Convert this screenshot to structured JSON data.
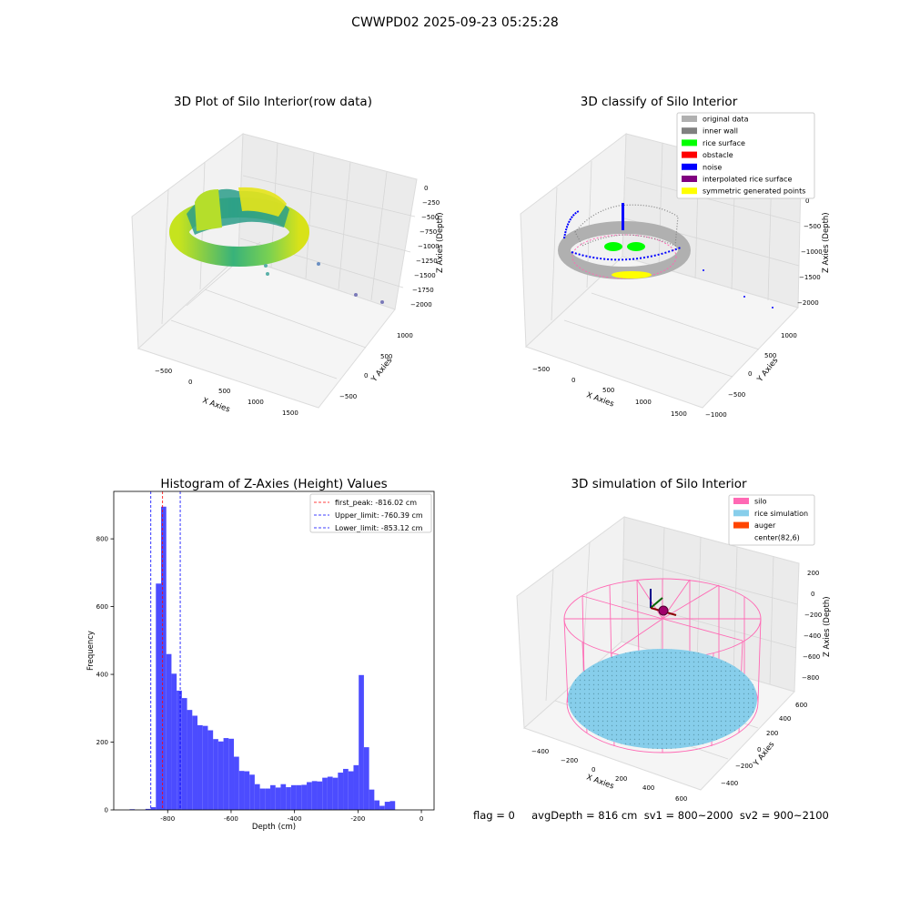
{
  "figure": {
    "suptitle": "CWWPD02 2025-09-23 05:25:28",
    "footer": "flag = 0     avgDepth = 816 cm  sv1 = 800~2000  sv2 = 900~2100"
  },
  "colors": {
    "original": "#b0b0b0",
    "inner_wall": "#808080",
    "rice_surface": "#00ff00",
    "obstacle": "#ff0000",
    "noise": "#0000ff",
    "interpolated": "#800080",
    "symmetric": "#ffff00",
    "silo": "#ff69b4",
    "rice_sim": "#87ceeb",
    "auger": "#ff4500",
    "hist_bar": "#4c4cff",
    "first_peak_line": "#ff0000",
    "limit_line": "#0000ff"
  },
  "panels": {
    "raw": {
      "title": "3D Plot of Silo Interior(row data)",
      "x_label": "X Axies",
      "y_label": "Y Axies",
      "z_label": "Z Axies (Depth)",
      "x_ticks": [
        "−500",
        "0",
        "500",
        "1000",
        "1500"
      ],
      "y_ticks": [
        "−500",
        "0",
        "500",
        "1000"
      ],
      "z_ticks": [
        "0",
        "−250",
        "−500",
        "−750",
        "−1000",
        "−1250",
        "−1500",
        "−1750",
        "−2000"
      ]
    },
    "classify": {
      "title": "3D classify of Silo Interior",
      "x_label": "X Axies",
      "y_label": "Y Axies",
      "z_label": "Z Axies (Depth)",
      "x_ticks": [
        "−500",
        "0",
        "500",
        "1000",
        "1500"
      ],
      "y_ticks": [
        "−1000",
        "−500",
        "0",
        "500",
        "1000"
      ],
      "z_ticks": [
        "0",
        "−500",
        "−1000",
        "−1500",
        "−2000"
      ],
      "legend": [
        {
          "label": "original data",
          "color": "#b0b0b0"
        },
        {
          "label": "inner wall",
          "color": "#808080"
        },
        {
          "label": "rice surface",
          "color": "#00ff00"
        },
        {
          "label": "obstacle",
          "color": "#ff0000"
        },
        {
          "label": "noise",
          "color": "#0000ff"
        },
        {
          "label": "interpolated rice surface",
          "color": "#800080"
        },
        {
          "label": "symmetric generated points",
          "color": "#ffff00"
        }
      ]
    },
    "simulation": {
      "title": "3D simulation of Silo Interior",
      "x_label": "X Axies",
      "y_label": "Y Axies",
      "z_label": "Z Axies (Depth)",
      "x_ticks": [
        "−400",
        "−200",
        "0",
        "200",
        "400",
        "600"
      ],
      "y_ticks": [
        "−400",
        "−200",
        "0",
        "200",
        "400",
        "600"
      ],
      "z_ticks": [
        "200",
        "0",
        "−200",
        "−400",
        "−600",
        "−800"
      ],
      "legend": [
        {
          "label": "silo",
          "color": "#ff69b4"
        },
        {
          "label": "rice simulation",
          "color": "#87ceeb"
        },
        {
          "label": "auger",
          "color": "#ff4500"
        },
        {
          "label": "center(82,6)",
          "color": ""
        }
      ]
    }
  },
  "chart_data": [
    {
      "type": "bar",
      "title": "Histogram of Z-Axies (Height) Values",
      "xlabel": "Depth (cm)",
      "ylabel": "Frequency",
      "xlim": [
        -970,
        40
      ],
      "ylim": [
        0,
        940
      ],
      "x_ticks": [
        -800,
        -600,
        -400,
        -200,
        0
      ],
      "y_ticks": [
        0,
        200,
        400,
        600,
        800
      ],
      "bin_width": 16.4,
      "bins": [
        {
          "x0": -920,
          "count": 2
        },
        {
          "x0": -870,
          "count": 3
        },
        {
          "x0": -853.6,
          "count": 8
        },
        {
          "x0": -837.2,
          "count": 668
        },
        {
          "x0": -820.8,
          "count": 895
        },
        {
          "x0": -804.4,
          "count": 460
        },
        {
          "x0": -788.0,
          "count": 402
        },
        {
          "x0": -771.6,
          "count": 352
        },
        {
          "x0": -755.2,
          "count": 330
        },
        {
          "x0": -738.8,
          "count": 295
        },
        {
          "x0": -722.4,
          "count": 278
        },
        {
          "x0": -706.0,
          "count": 250
        },
        {
          "x0": -689.6,
          "count": 248
        },
        {
          "x0": -673.2,
          "count": 235
        },
        {
          "x0": -656.8,
          "count": 209
        },
        {
          "x0": -640.4,
          "count": 202
        },
        {
          "x0": -624.0,
          "count": 212
        },
        {
          "x0": -607.6,
          "count": 210
        },
        {
          "x0": -591.2,
          "count": 157
        },
        {
          "x0": -574.8,
          "count": 115
        },
        {
          "x0": -558.4,
          "count": 114
        },
        {
          "x0": -542.0,
          "count": 104
        },
        {
          "x0": -525.6,
          "count": 76
        },
        {
          "x0": -509.2,
          "count": 63
        },
        {
          "x0": -492.8,
          "count": 63
        },
        {
          "x0": -476.4,
          "count": 73
        },
        {
          "x0": -460.0,
          "count": 66
        },
        {
          "x0": -443.6,
          "count": 76
        },
        {
          "x0": -427.2,
          "count": 67
        },
        {
          "x0": -410.8,
          "count": 73
        },
        {
          "x0": -394.4,
          "count": 73
        },
        {
          "x0": -378.0,
          "count": 74
        },
        {
          "x0": -361.6,
          "count": 82
        },
        {
          "x0": -345.2,
          "count": 85
        },
        {
          "x0": -328.8,
          "count": 84
        },
        {
          "x0": -312.4,
          "count": 95
        },
        {
          "x0": -296.0,
          "count": 98
        },
        {
          "x0": -279.6,
          "count": 95
        },
        {
          "x0": -263.2,
          "count": 110
        },
        {
          "x0": -246.8,
          "count": 121
        },
        {
          "x0": -230.4,
          "count": 114
        },
        {
          "x0": -214.0,
          "count": 132
        },
        {
          "x0": -197.6,
          "count": 398
        },
        {
          "x0": -181.2,
          "count": 185
        },
        {
          "x0": -164.8,
          "count": 60
        },
        {
          "x0": -148.4,
          "count": 28
        },
        {
          "x0": -132.0,
          "count": 12
        },
        {
          "x0": -115.6,
          "count": 24
        },
        {
          "x0": -99.2,
          "count": 26
        }
      ],
      "vlines": [
        {
          "x": -816.02,
          "label": "first_peak: -816.02 cm",
          "color": "#ff0000"
        },
        {
          "x": -760.39,
          "label": "Upper_limit: -760.39 cm",
          "color": "#0000ff"
        },
        {
          "x": -853.12,
          "label": "Lower_limit: -853.12 cm",
          "color": "#0000ff"
        }
      ],
      "legend_position": "top-right",
      "grid": false
    }
  ]
}
